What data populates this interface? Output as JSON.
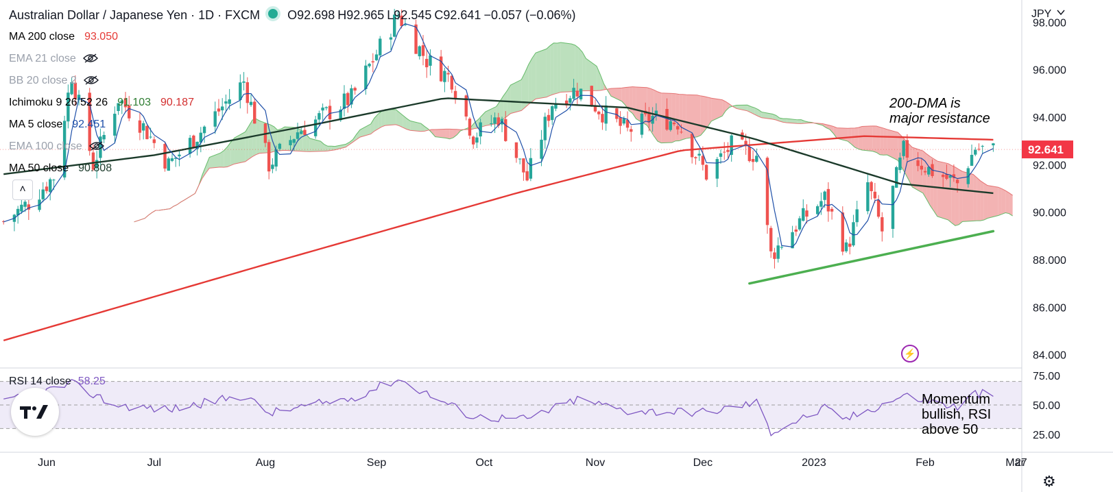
{
  "header": {
    "title": "Australian Dollar / Japanese Yen · 1D · FXCM",
    "open": "O92.698",
    "high": "H92.965",
    "low": "L92.545",
    "close": "C92.641",
    "change": "−0.057 (−0.06%)"
  },
  "indicators": [
    {
      "label": "MA 200 close",
      "values": [
        "93.050"
      ],
      "colors": [
        "#e53935"
      ],
      "hidden": false
    },
    {
      "label": "EMA 21 close",
      "values": [],
      "colors": [],
      "hidden": true
    },
    {
      "label": "BB 20 close 2",
      "values": [],
      "colors": [],
      "hidden": true
    },
    {
      "label": "Ichimoku 9 26 52 26",
      "values": [
        "91.103",
        "90.187"
      ],
      "colors": [
        "#2e7d32",
        "#d32f2f"
      ],
      "hidden": false
    },
    {
      "label": "MA 5 close",
      "values": [
        "92.451"
      ],
      "colors": [
        "#1e4fa8"
      ],
      "hidden": false
    },
    {
      "label": "EMA 100 close",
      "values": [],
      "colors": [],
      "hidden": true
    },
    {
      "label": "MA 50 close",
      "values": [
        "90.808"
      ],
      "colors": [
        "#1b3a2a"
      ],
      "hidden": false
    }
  ],
  "rsi": {
    "label": "RSI 14 close",
    "value": "58.25"
  },
  "annotations": {
    "resistance": [
      "200-DMA is",
      "major resistance"
    ],
    "momentum": [
      "Momentum",
      "bullish, RSI",
      "above 50"
    ]
  },
  "icons": {
    "collapse": "chevron-up-icon",
    "logo": "tradingview-logo-icon",
    "flash": "lightning-icon",
    "settings": "gear-icon"
  },
  "colors": {
    "bull": "#26a69a",
    "bear": "#ef5350",
    "ma200": "#e53935",
    "ma50": "#1b3a2a",
    "ma5": "#1e4fa8",
    "cloud_bull": "#a5d6a7",
    "cloud_bear": "#ef9a9a",
    "rsi": "#7e57c2",
    "trendline": "#4caf50"
  },
  "chart_data": {
    "type": "candlestick",
    "currency": "JPY",
    "last_price": "92.641",
    "price_axis": {
      "ticks": [
        "98.000",
        "96.000",
        "94.000",
        "92.000",
        "90.000",
        "88.000",
        "86.000",
        "84.000"
      ],
      "range": [
        83.5,
        98.7
      ]
    },
    "time_axis": {
      "ticks": [
        "Jun",
        "Jul",
        "Aug",
        "Sep",
        "Oct",
        "Nov",
        "Dec",
        "2023",
        "Feb",
        "Mar",
        "27"
      ]
    },
    "rsi_axis": {
      "ticks": [
        "75.00",
        "50.00",
        "25.00"
      ],
      "band": [
        30,
        70
      ]
    },
    "price_path": [
      {
        "date": "2022-05-20",
        "price": 89.6
      },
      {
        "date": "2022-05-27",
        "price": 90.4
      },
      {
        "date": "2022-06-03",
        "price": 91.5
      },
      {
        "date": "2022-06-08",
        "price": 95.8
      },
      {
        "date": "2022-06-14",
        "price": 92.0
      },
      {
        "date": "2022-06-21",
        "price": 94.8
      },
      {
        "date": "2022-06-28",
        "price": 93.6
      },
      {
        "date": "2022-07-05",
        "price": 92.0
      },
      {
        "date": "2022-07-14",
        "price": 93.4
      },
      {
        "date": "2022-07-26",
        "price": 95.5
      },
      {
        "date": "2022-08-02",
        "price": 92.0
      },
      {
        "date": "2022-08-10",
        "price": 93.4
      },
      {
        "date": "2022-08-25",
        "price": 94.8
      },
      {
        "date": "2022-09-07",
        "price": 98.3
      },
      {
        "date": "2022-09-15",
        "price": 96.4
      },
      {
        "date": "2022-09-22",
        "price": 95.6
      },
      {
        "date": "2022-09-28",
        "price": 93.2
      },
      {
        "date": "2022-10-05",
        "price": 94.0
      },
      {
        "date": "2022-10-13",
        "price": 91.4
      },
      {
        "date": "2022-10-20",
        "price": 94.6
      },
      {
        "date": "2022-10-27",
        "price": 95.2
      },
      {
        "date": "2022-11-03",
        "price": 94.2
      },
      {
        "date": "2022-11-10",
        "price": 93.4
      },
      {
        "date": "2022-11-17",
        "price": 94.0
      },
      {
        "date": "2022-11-24",
        "price": 93.8
      },
      {
        "date": "2022-12-02",
        "price": 91.6
      },
      {
        "date": "2022-12-09",
        "price": 92.8
      },
      {
        "date": "2022-12-16",
        "price": 92.4
      },
      {
        "date": "2022-12-20",
        "price": 88.2
      },
      {
        "date": "2022-12-28",
        "price": 89.6
      },
      {
        "date": "2023-01-04",
        "price": 90.6
      },
      {
        "date": "2023-01-10",
        "price": 88.4
      },
      {
        "date": "2023-01-16",
        "price": 91.2
      },
      {
        "date": "2023-01-20",
        "price": 89.2
      },
      {
        "date": "2023-01-26",
        "price": 92.6
      },
      {
        "date": "2023-02-02",
        "price": 91.8
      },
      {
        "date": "2023-02-10",
        "price": 91.2
      },
      {
        "date": "2023-02-15",
        "price": 92.7
      },
      {
        "date": "2023-02-20",
        "price": 92.6
      }
    ],
    "series": [
      {
        "name": "MA 200 close",
        "points": [
          {
            "date": "2022-05-20",
            "price": 84.6
          },
          {
            "date": "2022-08-01",
            "price": 87.8
          },
          {
            "date": "2022-10-10",
            "price": 90.8
          },
          {
            "date": "2022-11-25",
            "price": 92.6
          },
          {
            "date": "2023-01-15",
            "price": 93.2
          },
          {
            "date": "2023-02-20",
            "price": 93.05
          }
        ]
      },
      {
        "name": "MA 50 close",
        "points": [
          {
            "date": "2022-05-20",
            "price": 91.6
          },
          {
            "date": "2022-07-01",
            "price": 92.4
          },
          {
            "date": "2022-08-15",
            "price": 93.7
          },
          {
            "date": "2022-09-20",
            "price": 94.8
          },
          {
            "date": "2022-11-10",
            "price": 94.4
          },
          {
            "date": "2022-12-15",
            "price": 93.1
          },
          {
            "date": "2023-01-25",
            "price": 91.2
          },
          {
            "date": "2023-02-20",
            "price": 90.8
          }
        ]
      }
    ],
    "rsi_series": [
      {
        "date": "2022-05-20",
        "rsi": 52
      },
      {
        "date": "2022-06-08",
        "rsi": 68
      },
      {
        "date": "2022-06-20",
        "rsi": 50
      },
      {
        "date": "2022-07-05",
        "rsi": 46
      },
      {
        "date": "2022-07-26",
        "rsi": 58
      },
      {
        "date": "2022-08-02",
        "rsi": 43
      },
      {
        "date": "2022-08-25",
        "rsi": 56
      },
      {
        "date": "2022-09-07",
        "rsi": 72
      },
      {
        "date": "2022-09-28",
        "rsi": 40
      },
      {
        "date": "2022-10-13",
        "rsi": 38
      },
      {
        "date": "2022-10-27",
        "rsi": 55
      },
      {
        "date": "2022-11-10",
        "rsi": 45
      },
      {
        "date": "2022-12-02",
        "rsi": 44
      },
      {
        "date": "2022-12-16",
        "rsi": 52
      },
      {
        "date": "2022-12-20",
        "rsi": 27
      },
      {
        "date": "2023-01-04",
        "rsi": 47
      },
      {
        "date": "2023-01-10",
        "rsi": 38
      },
      {
        "date": "2023-01-26",
        "rsi": 58
      },
      {
        "date": "2023-02-10",
        "rsi": 48
      },
      {
        "date": "2023-02-15",
        "rsi": 60
      },
      {
        "date": "2023-02-20",
        "rsi": 58.25
      }
    ],
    "trendline": [
      {
        "date": "2022-12-14",
        "price": 87.0
      },
      {
        "date": "2023-02-20",
        "price": 89.2
      }
    ],
    "legend": "top-left",
    "grid": false
  }
}
